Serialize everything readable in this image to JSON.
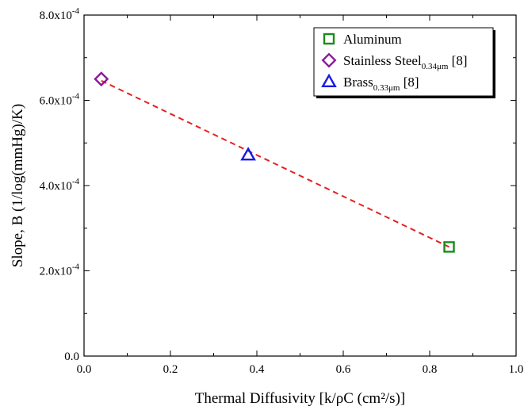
{
  "chart_data": {
    "type": "scatter",
    "title": "",
    "xlabel": "Thermal Diffusivity [k/ρC (cm²/s)]",
    "ylabel": "Slope, B (1/log(mmHg)/K)",
    "xlim": [
      0.0,
      1.0
    ],
    "ylim": [
      0.0,
      0.0008
    ],
    "x_ticks": [
      0.0,
      0.2,
      0.4,
      0.6,
      0.8,
      1.0
    ],
    "x_tick_labels": [
      "0.0",
      "0.2",
      "0.4",
      "0.6",
      "0.8",
      "1.0"
    ],
    "y_ticks": [
      0.0,
      0.0002,
      0.0004,
      0.0006,
      0.0008
    ],
    "y_tick_labels": [
      {
        "base": "0.0",
        "exp": ""
      },
      {
        "base": "2.0x10",
        "exp": "-4"
      },
      {
        "base": "4.0x10",
        "exp": "-4"
      },
      {
        "base": "6.0x10",
        "exp": "-4"
      },
      {
        "base": "8.0x10",
        "exp": "-4"
      }
    ],
    "grid": false,
    "legend_position": "top-right",
    "series": [
      {
        "name": "Aluminum",
        "name_sub": "",
        "name_suffix": "",
        "marker": "square",
        "color": "#1a8a1a",
        "x": [
          0.845
        ],
        "y": [
          0.000256
        ]
      },
      {
        "name": "Stainless Steel",
        "name_sub": "0.34μm",
        "name_suffix": " [8]",
        "marker": "diamond",
        "color": "#8b1a9a",
        "x": [
          0.04
        ],
        "y": [
          0.00065
        ]
      },
      {
        "name": "Brass",
        "name_sub": "0.33μm",
        "name_suffix": " [8]",
        "marker": "triangle",
        "color": "#1a1ae6",
        "x": [
          0.38
        ],
        "y": [
          0.000472
        ]
      }
    ],
    "fit_line": {
      "style": "dashed",
      "color": "#e62020",
      "x": [
        0.04,
        0.845
      ],
      "y": [
        0.000646,
        0.000256
      ]
    }
  }
}
